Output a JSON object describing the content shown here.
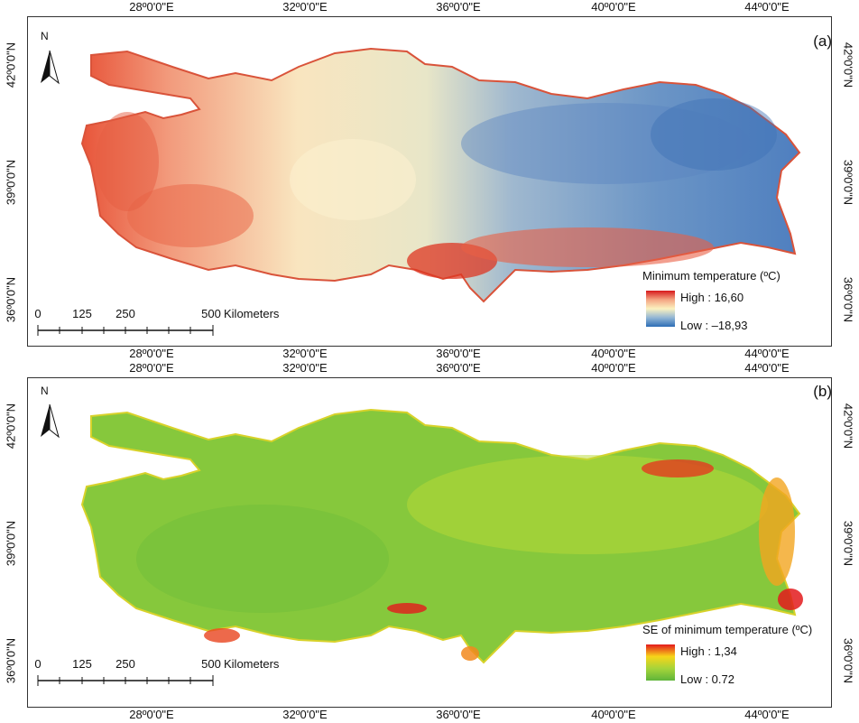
{
  "longitude_labels": [
    "28º0'0\"E",
    "32º0'0\"E",
    "36º0'0\"E",
    "40º0'0\"E",
    "44º0'0\"E"
  ],
  "latitude_labels": [
    "42º0'0\"N",
    "39º0'0\"N",
    "36º0'0\"N"
  ],
  "north_arrow": {
    "letter": "N",
    "icon": "north-arrow-icon"
  },
  "scale_bar": {
    "ticks": [
      "0",
      "125",
      "250",
      "500"
    ],
    "units": "Kilometers"
  },
  "panels": [
    {
      "label": "(a)",
      "legend": {
        "title": "Minimum temperature (ºC)",
        "high": "High : 16,60",
        "low": "Low : –18,93",
        "colors": [
          "#d7191c",
          "#f4a582",
          "#fbf2c0",
          "#92b6d5",
          "#2c6db5"
        ]
      }
    },
    {
      "label": "(b)",
      "legend": {
        "title": "SE of minimum temperature (ºC)",
        "high": "High : 1,34",
        "low": "Low : 0.72",
        "colors": [
          "#e31a1c",
          "#f7d519",
          "#a6d43a",
          "#5fb53a"
        ]
      }
    }
  ]
}
